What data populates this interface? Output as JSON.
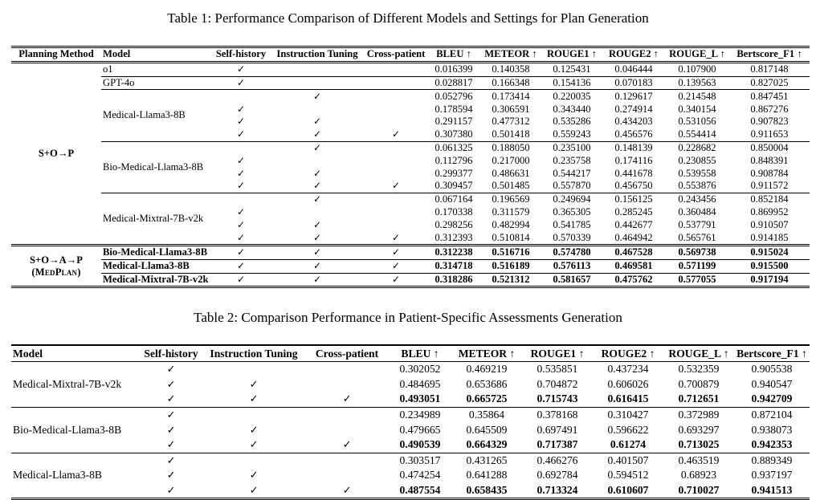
{
  "glyphs": {
    "check": "✓"
  },
  "table1": {
    "caption": "Table 1: Performance Comparison of Different Models and Settings for Plan Generation",
    "columns": [
      "Planning Method",
      "Model",
      "Self-history",
      "Instruction Tuning",
      "Cross-patient",
      "BLEU ↑",
      "METEOR ↑",
      "ROUGE1 ↑",
      "ROUGE2 ↑",
      "ROUGE_L ↑",
      "Bertscore_F1 ↑"
    ],
    "groups": [
      {
        "planning_method": "S+O→P",
        "planning_method_sub": "",
        "models": [
          {
            "name": "o1",
            "bold": false,
            "rows": [
              {
                "checks": [
                  1,
                  0,
                  0
                ],
                "bold": false,
                "values": [
                  "0.016399",
                  "0.140358",
                  "0.125431",
                  "0.046444",
                  "0.107900",
                  "0.817148"
                ]
              }
            ]
          },
          {
            "name": "GPT-4o",
            "bold": false,
            "rows": [
              {
                "checks": [
                  1,
                  0,
                  0
                ],
                "bold": false,
                "values": [
                  "0.028817",
                  "0.166348",
                  "0.154136",
                  "0.070183",
                  "0.139563",
                  "0.827025"
                ]
              }
            ]
          },
          {
            "name": "Medical-Llama3-8B",
            "bold": false,
            "rows": [
              {
                "checks": [
                  0,
                  1,
                  0
                ],
                "bold": false,
                "values": [
                  "0.052796",
                  "0.173414",
                  "0.220035",
                  "0.129617",
                  "0.214548",
                  "0.847451"
                ]
              },
              {
                "checks": [
                  1,
                  0,
                  0
                ],
                "bold": false,
                "values": [
                  "0.178594",
                  "0.306591",
                  "0.343440",
                  "0.274914",
                  "0.340154",
                  "0.867276"
                ]
              },
              {
                "checks": [
                  1,
                  1,
                  0
                ],
                "bold": false,
                "values": [
                  "0.291157",
                  "0.477312",
                  "0.535286",
                  "0.434203",
                  "0.531056",
                  "0.907823"
                ]
              },
              {
                "checks": [
                  1,
                  1,
                  1
                ],
                "bold": false,
                "values": [
                  "0.307380",
                  "0.501418",
                  "0.559243",
                  "0.456576",
                  "0.554414",
                  "0.911653"
                ]
              }
            ]
          },
          {
            "name": "Bio-Medical-Llama3-8B",
            "bold": false,
            "rows": [
              {
                "checks": [
                  0,
                  1,
                  0
                ],
                "bold": false,
                "values": [
                  "0.061325",
                  "0.188050",
                  "0.235100",
                  "0.148139",
                  "0.228682",
                  "0.850004"
                ]
              },
              {
                "checks": [
                  1,
                  0,
                  0
                ],
                "bold": false,
                "values": [
                  "0.112796",
                  "0.217000",
                  "0.235758",
                  "0.174116",
                  "0.230855",
                  "0.848391"
                ]
              },
              {
                "checks": [
                  1,
                  1,
                  0
                ],
                "bold": false,
                "values": [
                  "0.299377",
                  "0.486631",
                  "0.544217",
                  "0.441678",
                  "0.539558",
                  "0.908784"
                ]
              },
              {
                "checks": [
                  1,
                  1,
                  1
                ],
                "bold": false,
                "values": [
                  "0.309457",
                  "0.501485",
                  "0.557870",
                  "0.456750",
                  "0.553876",
                  "0.911572"
                ]
              }
            ]
          },
          {
            "name": "Medical-Mixtral-7B-v2k",
            "bold": false,
            "rows": [
              {
                "checks": [
                  0,
                  1,
                  0
                ],
                "bold": false,
                "values": [
                  "0.067164",
                  "0.196569",
                  "0.249694",
                  "0.156125",
                  "0.243456",
                  "0.852184"
                ]
              },
              {
                "checks": [
                  1,
                  0,
                  0
                ],
                "bold": false,
                "values": [
                  "0.170338",
                  "0.311579",
                  "0.365305",
                  "0.285245",
                  "0.360484",
                  "0.869952"
                ]
              },
              {
                "checks": [
                  1,
                  1,
                  0
                ],
                "bold": false,
                "values": [
                  "0.298256",
                  "0.482994",
                  "0.541785",
                  "0.442677",
                  "0.537791",
                  "0.910507"
                ]
              },
              {
                "checks": [
                  1,
                  1,
                  1
                ],
                "bold": false,
                "values": [
                  "0.312393",
                  "0.510814",
                  "0.570339",
                  "0.464942",
                  "0.565761",
                  "0.914185"
                ]
              }
            ]
          }
        ]
      },
      {
        "planning_method": "S+O→A→P",
        "planning_method_sub": "(MedPlan)",
        "models": [
          {
            "name": "Bio-Medical-Llama3-8B",
            "bold": true,
            "rows": [
              {
                "checks": [
                  1,
                  1,
                  1
                ],
                "bold": true,
                "values": [
                  "0.312238",
                  "0.516716",
                  "0.574780",
                  "0.467528",
                  "0.569738",
                  "0.915024"
                ]
              }
            ]
          },
          {
            "name": "Medical-Llama3-8B",
            "bold": true,
            "rows": [
              {
                "checks": [
                  1,
                  1,
                  1
                ],
                "bold": true,
                "values": [
                  "0.314718",
                  "0.516189",
                  "0.576113",
                  "0.469581",
                  "0.571199",
                  "0.915500"
                ]
              }
            ]
          },
          {
            "name": "Medical-Mixtral-7B-v2k",
            "bold": true,
            "rows": [
              {
                "checks": [
                  1,
                  1,
                  1
                ],
                "bold": true,
                "values": [
                  "0.318286",
                  "0.521312",
                  "0.581657",
                  "0.475762",
                  "0.577055",
                  "0.917194"
                ]
              }
            ]
          }
        ]
      }
    ]
  },
  "table2": {
    "caption": "Table 2: Comparison Performance in Patient-Specific Assessments Generation",
    "columns": [
      "Model",
      "Self-history",
      "Instruction Tuning",
      "Cross-patient",
      "BLEU ↑",
      "METEOR ↑",
      "ROUGE1 ↑",
      "ROUGE2 ↑",
      "ROUGE_L ↑",
      "Bertscore_F1 ↑"
    ],
    "groups": [
      {
        "models": [
          {
            "name": "Medical-Mixtral-7B-v2k",
            "bold": false,
            "rows": [
              {
                "checks": [
                  1,
                  0,
                  0
                ],
                "bold": false,
                "values": [
                  "0.302052",
                  "0.469219",
                  "0.535851",
                  "0.437234",
                  "0.532359",
                  "0.905538"
                ]
              },
              {
                "checks": [
                  1,
                  1,
                  0
                ],
                "bold": false,
                "values": [
                  "0.484695",
                  "0.653686",
                  "0.704872",
                  "0.606026",
                  "0.700879",
                  "0.940547"
                ]
              },
              {
                "checks": [
                  1,
                  1,
                  1
                ],
                "bold": true,
                "values": [
                  "0.493051",
                  "0.665725",
                  "0.715743",
                  "0.616415",
                  "0.712651",
                  "0.942709"
                ]
              }
            ]
          },
          {
            "name": "Bio-Medical-Llama3-8B",
            "bold": false,
            "rows": [
              {
                "checks": [
                  1,
                  0,
                  0
                ],
                "bold": false,
                "values": [
                  "0.234989",
                  "0.35864",
                  "0.378168",
                  "0.310427",
                  "0.372989",
                  "0.872104"
                ]
              },
              {
                "checks": [
                  1,
                  1,
                  0
                ],
                "bold": false,
                "values": [
                  "0.479665",
                  "0.645509",
                  "0.697491",
                  "0.596622",
                  "0.693297",
                  "0.938073"
                ]
              },
              {
                "checks": [
                  1,
                  1,
                  1
                ],
                "bold": true,
                "values": [
                  "0.490539",
                  "0.664329",
                  "0.717387",
                  "0.61274",
                  "0.713025",
                  "0.942353"
                ]
              }
            ]
          },
          {
            "name": "Medical-Llama3-8B",
            "bold": false,
            "rows": [
              {
                "checks": [
                  1,
                  0,
                  0
                ],
                "bold": false,
                "values": [
                  "0.303517",
                  "0.431265",
                  "0.466276",
                  "0.401507",
                  "0.463519",
                  "0.889349"
                ]
              },
              {
                "checks": [
                  1,
                  1,
                  0
                ],
                "bold": false,
                "values": [
                  "0.474254",
                  "0.641288",
                  "0.692784",
                  "0.594512",
                  "0.68923",
                  "0.937197"
                ]
              },
              {
                "checks": [
                  1,
                  1,
                  1
                ],
                "bold": true,
                "values": [
                  "0.487554",
                  "0.658435",
                  "0.713324",
                  "0.610607",
                  "0.710027",
                  "0.941513"
                ]
              }
            ]
          }
        ]
      }
    ]
  }
}
